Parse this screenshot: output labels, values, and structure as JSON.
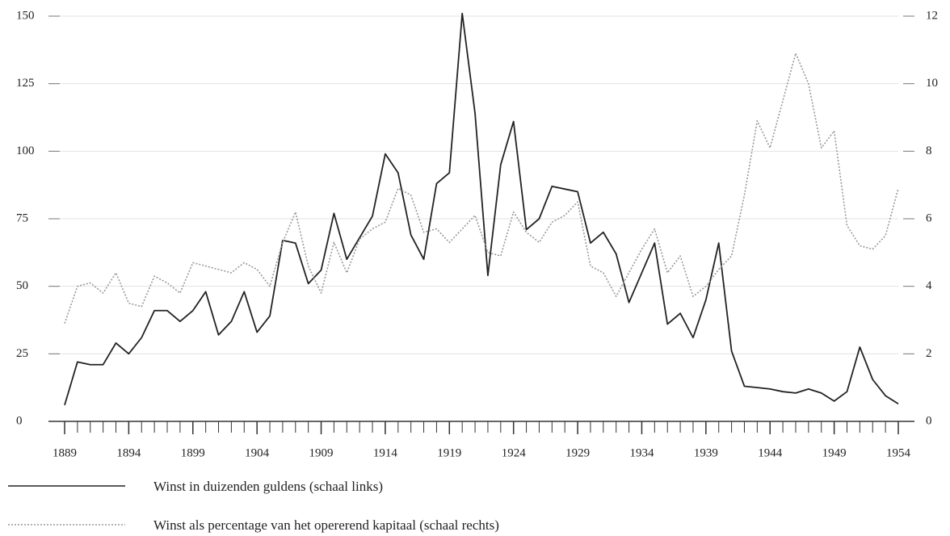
{
  "chart_data": {
    "type": "line",
    "x": [
      1889,
      1890,
      1891,
      1892,
      1893,
      1894,
      1895,
      1896,
      1897,
      1898,
      1899,
      1900,
      1901,
      1902,
      1903,
      1904,
      1905,
      1906,
      1907,
      1908,
      1909,
      1910,
      1911,
      1912,
      1913,
      1914,
      1915,
      1916,
      1917,
      1918,
      1919,
      1920,
      1921,
      1922,
      1923,
      1924,
      1925,
      1926,
      1927,
      1928,
      1929,
      1930,
      1931,
      1932,
      1933,
      1934,
      1935,
      1936,
      1937,
      1938,
      1939,
      1940,
      1941,
      1942,
      1943,
      1944,
      1945,
      1946,
      1947,
      1948,
      1949,
      1950,
      1951,
      1952,
      1953,
      1954
    ],
    "xlim": [
      1889,
      1954
    ],
    "xticks": [
      1889,
      1894,
      1899,
      1904,
      1909,
      1914,
      1919,
      1924,
      1929,
      1934,
      1939,
      1944,
      1949,
      1954
    ],
    "ylim": [
      0,
      150
    ],
    "yticks": [
      0,
      25,
      50,
      75,
      100,
      125,
      150
    ],
    "y2lim": [
      0,
      12
    ],
    "y2ticks": [
      0,
      2,
      4,
      6,
      8,
      10,
      12
    ],
    "grid": true,
    "series": [
      {
        "name": "Winst in duizenden guldens (schaal links)",
        "color": "#222222",
        "style": "solid",
        "values": [
          6,
          22,
          21,
          21,
          29,
          25,
          31,
          41,
          41,
          37,
          41,
          48,
          32,
          37,
          48,
          33,
          39,
          67,
          66,
          51,
          56,
          77,
          60,
          68,
          76,
          99,
          92,
          69,
          60,
          88,
          92,
          151,
          114,
          54,
          95,
          111,
          71,
          75,
          87,
          86,
          85,
          66,
          70,
          62,
          44,
          55,
          66,
          36,
          40,
          31,
          45,
          66,
          26,
          13,
          12.5,
          12,
          11,
          10.5,
          12,
          10.5,
          7.5,
          11,
          27.5,
          15.5,
          9.5,
          6.5
        ]
      },
      {
        "name": "Winst als percentage van het opererend kapitaal (schaal rechts)",
        "color": "#999999",
        "style": "dotted",
        "axis": "y2",
        "values": [
          2.9,
          4.0,
          4.1,
          3.8,
          4.4,
          3.5,
          3.4,
          4.3,
          4.1,
          3.8,
          4.7,
          4.6,
          4.5,
          4.4,
          4.7,
          4.5,
          4.0,
          5.3,
          6.2,
          4.6,
          3.8,
          5.3,
          4.4,
          5.4,
          5.7,
          5.9,
          6.9,
          6.7,
          5.6,
          5.7,
          5.3,
          5.7,
          6.1,
          5.0,
          4.9,
          6.2,
          5.6,
          5.3,
          5.9,
          6.1,
          6.5,
          4.6,
          4.4,
          3.7,
          4.4,
          5.1,
          5.7,
          4.4,
          4.9,
          3.7,
          4.0,
          4.5,
          4.9,
          6.7,
          8.9,
          8.1,
          9.5,
          10.9,
          10.0,
          8.1,
          8.6,
          5.8,
          5.2,
          5.1,
          5.5,
          6.9
        ]
      }
    ]
  }
}
